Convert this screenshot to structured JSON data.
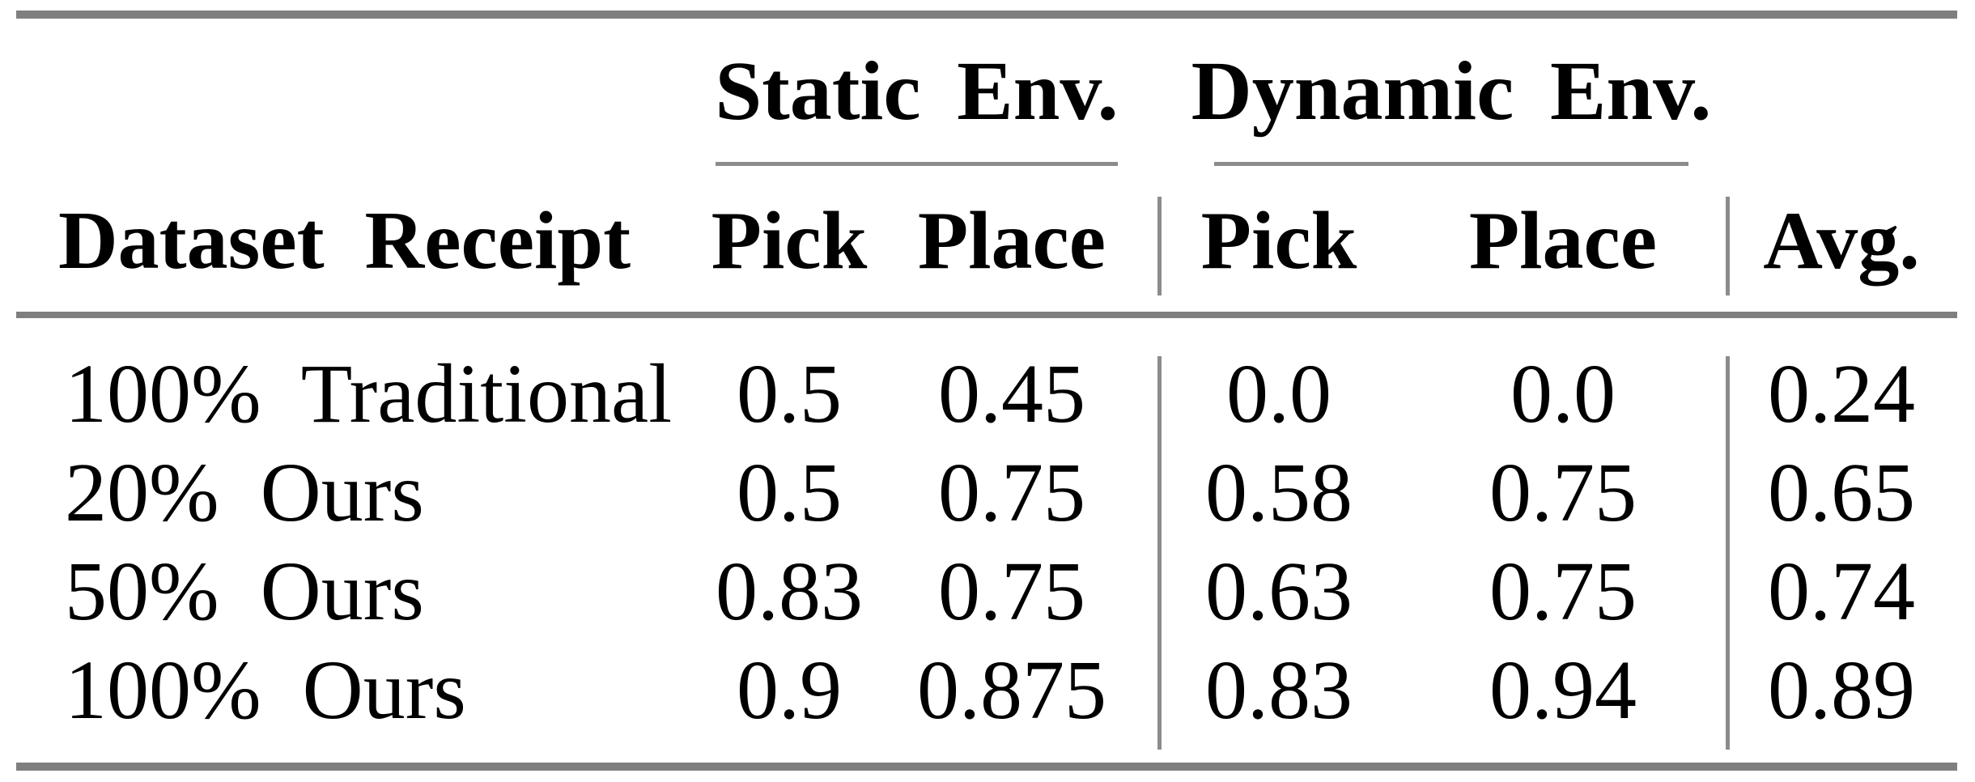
{
  "table": {
    "spanners": [
      {
        "label": "Static Env."
      },
      {
        "label": "Dynamic Env."
      }
    ],
    "columns": {
      "row_header": "Dataset Receipt",
      "static_pick": "Pick",
      "static_place": "Place",
      "dynamic_pick": "Pick",
      "dynamic_place": "Place",
      "avg": "Avg."
    },
    "rows": [
      {
        "label": "100% Traditional",
        "static_pick": "0.5",
        "static_place": "0.45",
        "dynamic_pick": "0.0",
        "dynamic_place": "0.0",
        "avg": "0.24"
      },
      {
        "label": "20% Ours",
        "static_pick": "0.5",
        "static_place": "0.75",
        "dynamic_pick": "0.58",
        "dynamic_place": "0.75",
        "avg": "0.65"
      },
      {
        "label": "50% Ours",
        "static_pick": "0.83",
        "static_place": "0.75",
        "dynamic_pick": "0.63",
        "dynamic_place": "0.75",
        "avg": "0.74"
      },
      {
        "label": "100% Ours",
        "static_pick": "0.9",
        "static_place": "0.875",
        "dynamic_pick": "0.83",
        "dynamic_place": "0.94",
        "avg": "0.89"
      }
    ]
  },
  "colors": {
    "thick_rule": "#7f7f7f",
    "thin_rule": "#8c8c8c",
    "text": "#000000",
    "background": "#ffffff"
  },
  "chart_data": {
    "type": "table",
    "column_groups": [
      {
        "label": "Static Env.",
        "columns": [
          "Pick",
          "Place"
        ]
      },
      {
        "label": "Dynamic Env.",
        "columns": [
          "Pick",
          "Place"
        ]
      }
    ],
    "columns": [
      "Dataset Receipt",
      "Static Env. Pick",
      "Static Env. Place",
      "Dynamic Env. Pick",
      "Dynamic Env. Place",
      "Avg."
    ],
    "rows": [
      [
        "100% Traditional",
        0.5,
        0.45,
        0.0,
        0.0,
        0.24
      ],
      [
        "20% Ours",
        0.5,
        0.75,
        0.58,
        0.75,
        0.65
      ],
      [
        "50% Ours",
        0.83,
        0.75,
        0.63,
        0.75,
        0.74
      ],
      [
        "100% Ours",
        0.9,
        0.875,
        0.83,
        0.94,
        0.89
      ]
    ]
  }
}
